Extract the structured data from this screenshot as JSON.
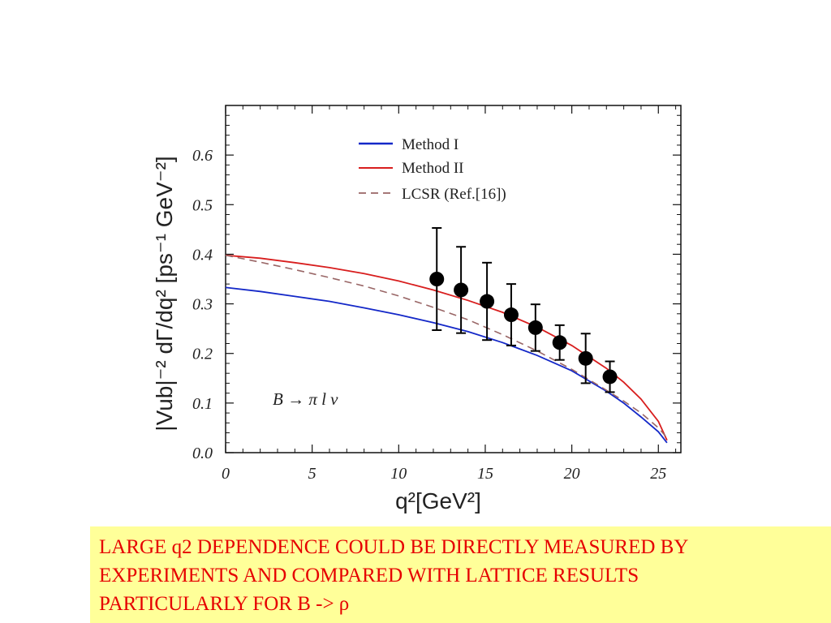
{
  "chart_data": {
    "type": "line",
    "xlabel": "q²[GeV²]",
    "ylabel": "|Vub|⁻² dΓ/dq² [ps⁻¹ GeV⁻²]",
    "xlim": [
      0,
      26.3
    ],
    "ylim": [
      0,
      0.7
    ],
    "x_ticks": [
      "0",
      "5",
      "10",
      "15",
      "20",
      "25"
    ],
    "y_ticks": [
      "0.0",
      "0.1",
      "0.2",
      "0.3",
      "0.4",
      "0.5",
      "0.6"
    ],
    "annotation": "B → π l ν",
    "legend_position": "top-center",
    "series": [
      {
        "name": "Method I",
        "style": "solid",
        "color": "#1428c8",
        "x": [
          0,
          2,
          4,
          6,
          8,
          10,
          12,
          14,
          16,
          18,
          20,
          22,
          23,
          24,
          25,
          25.5
        ],
        "y": [
          0.333,
          0.325,
          0.315,
          0.305,
          0.292,
          0.278,
          0.262,
          0.244,
          0.222,
          0.196,
          0.165,
          0.124,
          0.1,
          0.072,
          0.042,
          0.02
        ]
      },
      {
        "name": "Method II",
        "style": "solid",
        "color": "#d81e1e",
        "x": [
          0,
          2,
          4,
          6,
          8,
          10,
          12,
          14,
          16,
          18,
          20,
          22,
          23,
          24,
          25,
          25.5
        ],
        "y": [
          0.398,
          0.392,
          0.383,
          0.373,
          0.361,
          0.346,
          0.328,
          0.307,
          0.283,
          0.253,
          0.216,
          0.17,
          0.142,
          0.108,
          0.063,
          0.025
        ]
      },
      {
        "name": "LCSR (Ref.[16])",
        "style": "dashed",
        "color": "#996666",
        "x": [
          0,
          2,
          4,
          6,
          8,
          10,
          12,
          14,
          16,
          18,
          20,
          22,
          23,
          24,
          25,
          25.5
        ],
        "y": [
          0.398,
          0.384,
          0.369,
          0.353,
          0.336,
          0.316,
          0.293,
          0.268,
          0.238,
          0.205,
          0.168,
          0.126,
          0.104,
          0.08,
          0.05,
          0.03
        ]
      }
    ],
    "points": {
      "x": [
        12.2,
        13.6,
        15.1,
        16.5,
        17.9,
        19.3,
        20.8,
        22.2
      ],
      "y": [
        0.35,
        0.328,
        0.305,
        0.278,
        0.252,
        0.222,
        0.19,
        0.153
      ],
      "yerr": [
        0.103,
        0.087,
        0.078,
        0.062,
        0.047,
        0.035,
        0.05,
        0.031
      ]
    }
  },
  "caption": {
    "line1": "LARGE q2 DEPENDENCE COULD BE DIRECTLY MEASURED BY",
    "line2": "EXPERIMENTS AND COMPARED WITH LATTICE RESULTS",
    "line3": "PARTICULARLY FOR B -> ρ"
  }
}
